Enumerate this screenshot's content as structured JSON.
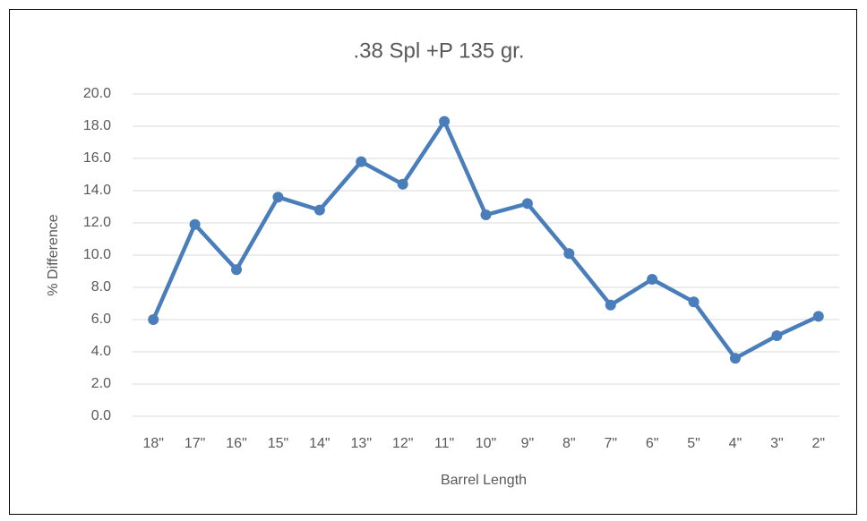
{
  "chart_data": {
    "type": "line",
    "title": ".38 Spl +P 135 gr.",
    "x_label": "Barrel Length",
    "y_label": "% Difference",
    "categories": [
      "18\"",
      "17\"",
      "16\"",
      "15\"",
      "14\"",
      "13\"",
      "12\"",
      "11\"",
      "10\"",
      "9\"",
      "8\"",
      "7\"",
      "6\"",
      "5\"",
      "4\"",
      "3\"",
      "2\""
    ],
    "values": [
      6.0,
      11.9,
      9.1,
      13.6,
      12.8,
      15.8,
      14.4,
      18.3,
      12.5,
      13.2,
      10.1,
      6.9,
      8.5,
      7.1,
      3.6,
      5.0,
      6.2
    ],
    "color": "#4a7ebb",
    "ylim": [
      0,
      20
    ],
    "yticks": [
      {
        "value": 0,
        "label": "0.0"
      },
      {
        "value": 2,
        "label": "2.0"
      },
      {
        "value": 4,
        "label": "4.0"
      },
      {
        "value": 6,
        "label": "6.0"
      },
      {
        "value": 8,
        "label": "8.0"
      },
      {
        "value": 10,
        "label": "10.0"
      },
      {
        "value": 12,
        "label": "12.0"
      },
      {
        "value": 14,
        "label": "14.0"
      },
      {
        "value": 16,
        "label": "16.0"
      },
      {
        "value": 18,
        "label": "18.0"
      },
      {
        "value": 20,
        "label": "20.0"
      }
    ],
    "grid": true
  }
}
